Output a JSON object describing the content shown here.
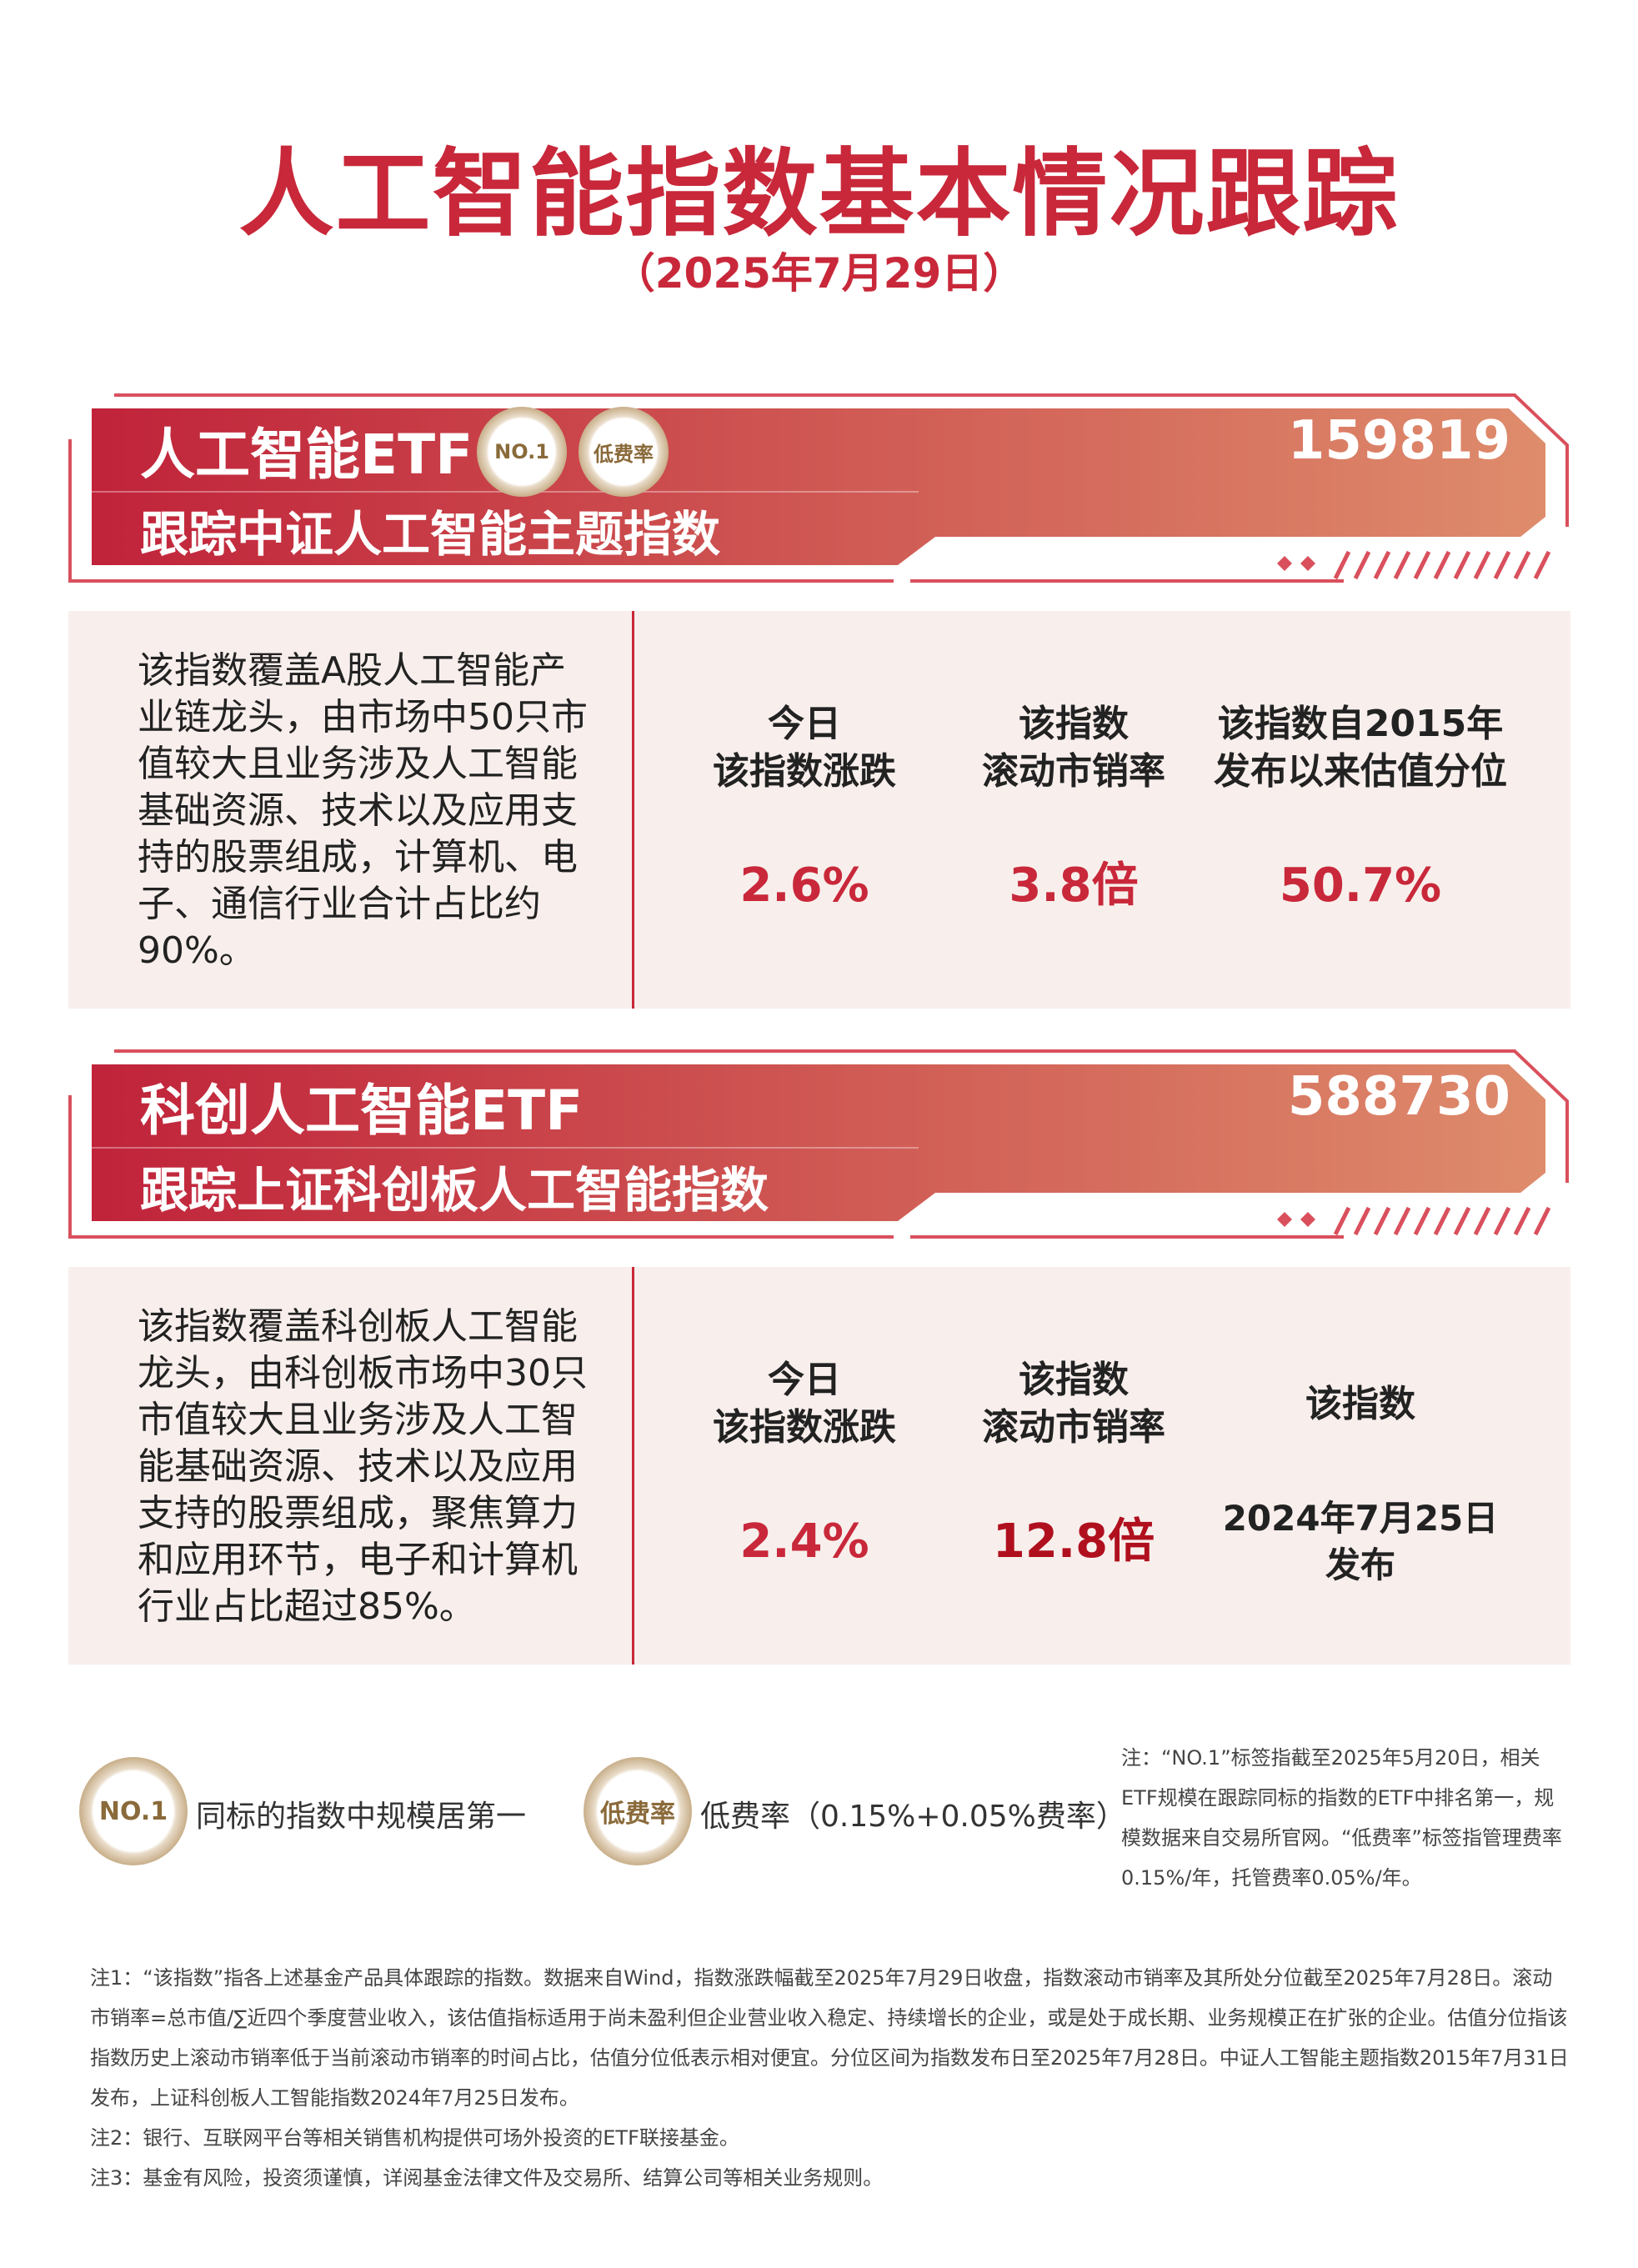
{
  "header": {
    "title": "人工智能指数基本情况跟踪",
    "date": "（2025年7月29日）"
  },
  "badges": [
    {
      "label": "NO.1",
      "desc": "同标的指数中规模居第一"
    },
    {
      "label": "低费率",
      "desc": "低费率（0.15%+0.05%费率）"
    }
  ],
  "funds": [
    {
      "name": "人工智能ETF",
      "code": "159819",
      "tracking": "跟踪中证人工智能主题指数",
      "show_badges": true,
      "description": "该指数覆盖A股人工智能产业链龙头，由市场中50只市值较大且业务涉及人工智能基础资源、技术以及应用支持的股票组成，计算机、电子、通信行业合计占比约90%。",
      "metrics": [
        {
          "label_lines": [
            "今日",
            "该指数涨跌"
          ],
          "value_lines": [
            "2.6%"
          ]
        },
        {
          "label_lines": [
            "该指数",
            "滚动市销率"
          ],
          "value_lines": [
            "3.8倍"
          ]
        },
        {
          "label_lines": [
            "该指数自2015年",
            "发布以来估值分位"
          ],
          "value_lines": [
            "50.7%"
          ]
        }
      ]
    },
    {
      "name": "科创人工智能ETF",
      "code": "588730",
      "tracking": "跟踪上证科创板人工智能指数",
      "show_badges": false,
      "description": "该指数覆盖科创板人工智能龙头，由科创板市场中30只市值较大且业务涉及人工智能基础资源、技术以及应用支持的股票组成，聚焦算力和应用环节，电子和计算机行业占比超过85%。",
      "metrics": [
        {
          "label_lines": [
            "今日",
            "该指数涨跌"
          ],
          "value_lines": [
            "2.4%"
          ]
        },
        {
          "label_lines": [
            "该指数",
            "滚动市销率"
          ],
          "value_lines": [
            "12.8倍"
          ]
        },
        {
          "label_lines": [
            "该指数"
          ],
          "value_lines": [
            "2024年7月25日",
            "发布"
          ]
        }
      ]
    }
  ],
  "side_note": "注：“NO.1”标签指截至2025年5月20日，相关ETF规模在跟踪同标的指数的ETF中排名第一，规模数据来自交易所官网。“低费率”标签指管理费率0.15%/年，托管费率0.05%/年。",
  "footnotes": [
    "注1：“该指数”指各上述基金产品具体跟踪的指数。数据来自Wind，指数涨跌幅截至2025年7月29日收盘，指数滚动市销率及其所处分位截至2025年7月28日。滚动市销率=总市值/∑近四个季度营业收入，该估值指标适用于尚未盈利但企业营业收入稳定、持续增长的企业，或是处于成长期、业务规模正在扩张的企业。估值分位指该指数历史上滚动市销率低于当前滚动市销率的时间占比，估值分位低表示相对便宜。分位区间为指数发布日至2025年7月28日。中证人工智能主题指数2015年7月31日发布，上证科创板人工智能指数2024年7月25日发布。",
    "注2：银行、互联网平台等相关销售机构提供可场外投资的ETF联接基金。",
    "注3：基金有风险，投资须谨慎，详阅基金法律文件及交易所、结算公司等相关业务规则。"
  ]
}
